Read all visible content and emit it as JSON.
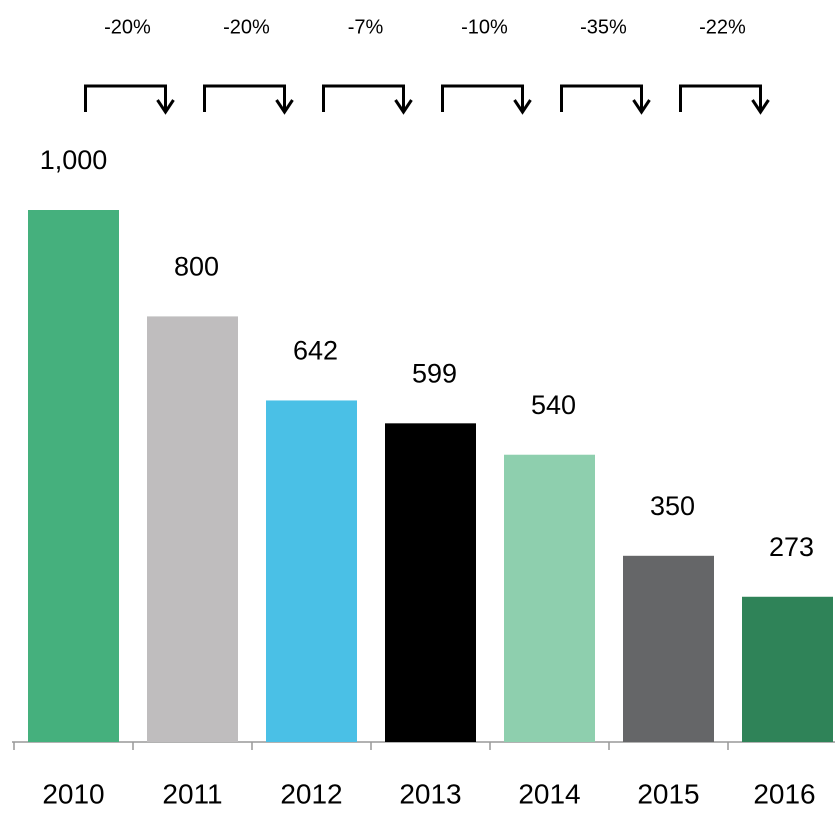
{
  "chart_data": {
    "type": "bar",
    "categories": [
      "2010",
      "2011",
      "2012",
      "2013",
      "2014",
      "2015",
      "2016"
    ],
    "values": [
      1000,
      800,
      642,
      599,
      540,
      350,
      273
    ],
    "value_labels": [
      "1,000",
      "800",
      "642",
      "599",
      "540",
      "350",
      "273"
    ],
    "colors": [
      "#45b07d",
      "#bfbdbe",
      "#4ac0e6",
      "#000000",
      "#8ecfae",
      "#656668",
      "#2f8358"
    ],
    "annotations": [
      "-20%",
      "-20%",
      "-7%",
      "-10%",
      "-35%",
      "-22%"
    ],
    "ylim": [
      0,
      1000
    ]
  }
}
